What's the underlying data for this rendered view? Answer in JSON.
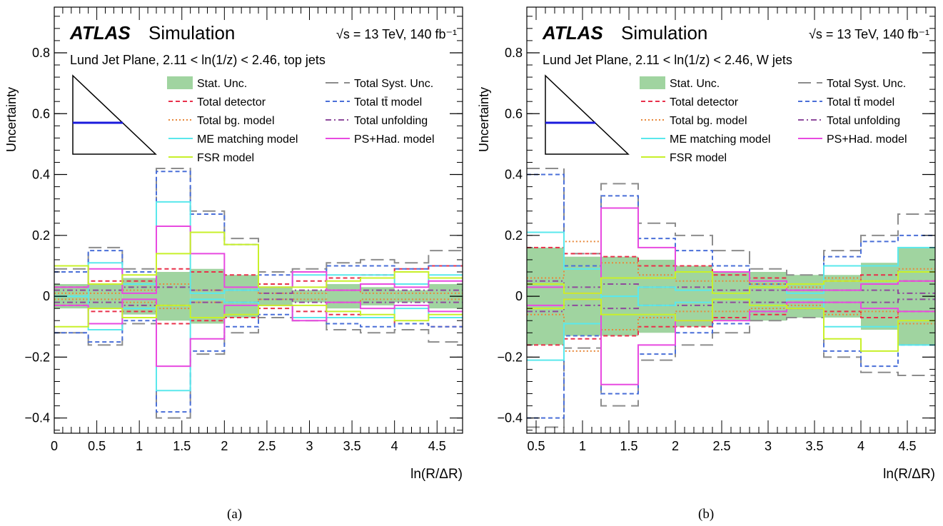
{
  "panels": [
    {
      "caption": "(a)",
      "atlas": "ATLAS",
      "simulation": "Simulation",
      "energy_label": "√s = 13 TeV, 140 fb⁻¹",
      "region_label": "Lund Jet Plane, 2.11 < ln(1/z) < 2.46, top jets",
      "ylabel": "Uncertainty",
      "xlabel": "ln(R/ΔR)"
    },
    {
      "caption": "(b)",
      "atlas": "ATLAS",
      "simulation": "Simulation",
      "energy_label": "√s = 13 TeV, 140 fb⁻¹",
      "region_label": "Lund Jet Plane, 2.11 < ln(1/z) < 2.46, W jets",
      "ylabel": "Uncertainty",
      "xlabel": "ln(R/ΔR)"
    }
  ],
  "legend": [
    {
      "key": "stat",
      "label": "Stat. Unc.",
      "color": "#a0d4a0",
      "style": "fill"
    },
    {
      "key": "syst",
      "label": "Total Syst. Unc.",
      "color": "#8c8c8c",
      "style": "longdash"
    },
    {
      "key": "det",
      "label": "Total detector",
      "color": "#e8304a",
      "style": "dash"
    },
    {
      "key": "ttbar",
      "label": "Total tt̄ model",
      "color": "#4a6fd8",
      "style": "dash"
    },
    {
      "key": "bg",
      "label": "Total bg. model",
      "color": "#e8883a",
      "style": "dot"
    },
    {
      "key": "unf",
      "label": "Total unfolding",
      "color": "#8e4a9c",
      "style": "dashdot"
    },
    {
      "key": "me",
      "label": "ME matching model",
      "color": "#5ae8ec",
      "style": "solid"
    },
    {
      "key": "ps",
      "label": "PS+Had. model",
      "color": "#e84ae0",
      "style": "solid"
    },
    {
      "key": "fsr",
      "label": "FSR model",
      "color": "#c8f02a",
      "style": "solid"
    }
  ],
  "chart_data": [
    {
      "type": "step",
      "title": "Lund Jet Plane, 2.11 < ln(1/z) < 2.46, top jets",
      "xlabel": "ln(R/ΔR)",
      "ylabel": "Uncertainty",
      "xlim": [
        0,
        4.8
      ],
      "ylim": [
        -0.45,
        0.95
      ],
      "xticks": [
        0,
        0.5,
        1,
        1.5,
        2,
        2.5,
        3,
        3.5,
        4,
        4.5
      ],
      "yticks": [
        -0.4,
        -0.2,
        0,
        0.2,
        0.4,
        0.6,
        0.8
      ],
      "edges": [
        0,
        0.4,
        0.8,
        1.2,
        1.6,
        2.0,
        2.4,
        2.8,
        3.2,
        3.6,
        4.0,
        4.4,
        4.8
      ],
      "series": [
        {
          "key": "stat",
          "name": "Stat. Unc.",
          "up": [
            0.04,
            0.04,
            0.06,
            0.08,
            0.09,
            0.07,
            0.03,
            0.02,
            0.04,
            0.03,
            0.02,
            0.04
          ],
          "down": [
            -0.04,
            -0.04,
            -0.06,
            -0.08,
            -0.09,
            -0.07,
            -0.03,
            -0.02,
            -0.04,
            -0.03,
            -0.02,
            -0.04
          ]
        },
        {
          "key": "syst",
          "name": "Total Syst. Unc.",
          "up": [
            0.09,
            0.16,
            0.09,
            0.42,
            0.28,
            0.19,
            0.08,
            0.09,
            0.11,
            0.12,
            0.11,
            0.15
          ],
          "down": [
            -0.12,
            -0.16,
            -0.09,
            -0.4,
            -0.19,
            -0.12,
            -0.07,
            -0.08,
            -0.11,
            -0.12,
            -0.11,
            -0.15
          ]
        },
        {
          "key": "det",
          "name": "Total detector",
          "up": [
            0.03,
            0.05,
            0.05,
            0.09,
            0.08,
            0.07,
            0.04,
            0.05,
            0.06,
            0.07,
            0.09,
            0.1
          ],
          "down": [
            -0.03,
            -0.05,
            -0.05,
            -0.09,
            -0.08,
            -0.07,
            -0.04,
            -0.05,
            -0.06,
            -0.07,
            -0.09,
            -0.1
          ]
        },
        {
          "key": "ttbar",
          "name": "Total tt̄ model",
          "up": [
            0.08,
            0.15,
            0.08,
            0.41,
            0.27,
            0.17,
            0.07,
            0.08,
            0.1,
            0.1,
            0.09,
            0.1
          ],
          "down": [
            -0.12,
            -0.15,
            -0.08,
            -0.38,
            -0.18,
            -0.1,
            -0.06,
            -0.07,
            -0.09,
            -0.1,
            -0.09,
            -0.1
          ]
        },
        {
          "key": "bg",
          "name": "Total bg. model",
          "up": [
            0.01,
            0.01,
            0.02,
            0.04,
            0.02,
            0.02,
            0.01,
            0.01,
            0.02,
            0.01,
            0.01,
            0.01
          ],
          "down": [
            -0.01,
            -0.01,
            -0.02,
            -0.04,
            -0.02,
            -0.02,
            -0.01,
            -0.01,
            -0.02,
            -0.01,
            -0.01,
            -0.01
          ]
        },
        {
          "key": "unf",
          "name": "Total unfolding",
          "up": [
            0.02,
            0.02,
            0.03,
            0.03,
            0.02,
            0.02,
            0.01,
            0.02,
            0.02,
            0.02,
            0.02,
            0.02
          ],
          "down": [
            -0.02,
            -0.02,
            -0.03,
            -0.03,
            -0.02,
            -0.02,
            -0.01,
            -0.02,
            -0.02,
            -0.02,
            -0.02,
            -0.02
          ]
        },
        {
          "key": "me",
          "name": "ME matching model",
          "up": [
            0.0,
            0.11,
            0.04,
            0.31,
            0.01,
            0.02,
            0.03,
            0.07,
            0.07,
            0.07,
            0.04,
            0.07
          ],
          "down": [
            0.0,
            -0.11,
            -0.04,
            -0.31,
            -0.01,
            -0.02,
            -0.03,
            -0.07,
            -0.07,
            -0.07,
            -0.04,
            -0.07
          ]
        },
        {
          "key": "ps",
          "name": "PS+Had. model",
          "up": [
            0.03,
            0.09,
            0.01,
            0.23,
            0.14,
            0.03,
            0.03,
            0.08,
            0.02,
            0.04,
            0.03,
            0.05
          ],
          "down": [
            -0.03,
            -0.09,
            -0.01,
            -0.23,
            -0.14,
            -0.03,
            -0.03,
            -0.08,
            -0.02,
            -0.04,
            -0.03,
            -0.05
          ]
        },
        {
          "key": "fsr",
          "name": "FSR model",
          "up": [
            0.1,
            0.04,
            0.07,
            0.14,
            0.21,
            0.17,
            0.03,
            0.03,
            0.05,
            0.06,
            0.08,
            0.06
          ],
          "down": [
            -0.1,
            -0.04,
            -0.07,
            -0.03,
            -0.07,
            -0.06,
            -0.03,
            -0.03,
            -0.05,
            -0.06,
            -0.08,
            -0.06
          ]
        }
      ]
    },
    {
      "type": "step",
      "title": "Lund Jet Plane, 2.11 < ln(1/z) < 2.46, W jets",
      "xlabel": "ln(R/ΔR)",
      "ylabel": "Uncertainty",
      "xlim": [
        0.4,
        4.8
      ],
      "ylim": [
        -0.45,
        0.95
      ],
      "xticks": [
        0.5,
        1,
        1.5,
        2,
        2.5,
        3,
        3.5,
        4,
        4.5
      ],
      "yticks": [
        -0.4,
        -0.2,
        0,
        0.2,
        0.4,
        0.6,
        0.8
      ],
      "edges": [
        0.4,
        0.8,
        1.2,
        1.6,
        2.0,
        2.4,
        2.8,
        3.2,
        3.6,
        4.0,
        4.4,
        4.8
      ],
      "series": [
        {
          "key": "stat",
          "name": "Stat. Unc.",
          "up": [
            0.16,
            0.13,
            0.13,
            0.12,
            0.1,
            0.08,
            0.08,
            0.07,
            0.07,
            0.11,
            0.16
          ],
          "down": [
            -0.16,
            -0.13,
            -0.13,
            -0.12,
            -0.1,
            -0.08,
            -0.08,
            -0.07,
            -0.07,
            -0.11,
            -0.16
          ]
        },
        {
          "key": "syst",
          "name": "Total Syst. Unc.",
          "up": [
            0.42,
            0.14,
            0.37,
            0.24,
            0.2,
            0.15,
            0.09,
            0.07,
            0.15,
            0.2,
            0.27
          ],
          "down": [
            -0.43,
            -0.17,
            -0.36,
            -0.21,
            -0.16,
            -0.12,
            -0.08,
            -0.07,
            -0.2,
            -0.25,
            -0.26
          ]
        },
        {
          "key": "det",
          "name": "Total detector",
          "up": [
            0.16,
            0.14,
            0.13,
            0.1,
            0.1,
            0.07,
            0.06,
            0.04,
            0.05,
            0.07,
            0.05
          ],
          "down": [
            -0.16,
            -0.14,
            -0.13,
            -0.1,
            -0.1,
            -0.07,
            -0.06,
            -0.04,
            -0.05,
            -0.07,
            -0.05
          ]
        },
        {
          "key": "ttbar",
          "name": "Total tt̄ model",
          "up": [
            0.4,
            0.1,
            0.33,
            0.19,
            0.15,
            0.1,
            0.04,
            0.04,
            0.13,
            0.18,
            0.2
          ],
          "down": [
            -0.4,
            -0.13,
            -0.32,
            -0.19,
            -0.12,
            -0.09,
            -0.05,
            -0.04,
            -0.18,
            -0.23,
            -0.16
          ]
        },
        {
          "key": "bg",
          "name": "Total bg. model",
          "up": [
            0.06,
            0.18,
            0.11,
            0.07,
            0.05,
            0.05,
            0.04,
            0.03,
            0.06,
            0.05,
            0.09
          ],
          "down": [
            -0.06,
            -0.18,
            -0.11,
            -0.07,
            -0.05,
            -0.05,
            -0.04,
            -0.03,
            -0.06,
            -0.05,
            -0.09
          ]
        },
        {
          "key": "unf",
          "name": "Total unfolding",
          "up": [
            0.05,
            0.03,
            0.04,
            0.03,
            0.03,
            0.02,
            0.02,
            0.02,
            0.02,
            0.02,
            0.01
          ],
          "down": [
            -0.05,
            -0.03,
            -0.04,
            -0.03,
            -0.03,
            -0.02,
            -0.02,
            -0.02,
            -0.02,
            -0.02,
            -0.01
          ]
        },
        {
          "key": "me",
          "name": "ME matching model",
          "up": [
            0.21,
            0.09,
            0.0,
            0.03,
            0.02,
            0.01,
            0.03,
            0.01,
            0.1,
            0.1,
            0.16
          ],
          "down": [
            -0.21,
            -0.09,
            0.0,
            -0.03,
            -0.02,
            -0.01,
            -0.03,
            -0.01,
            -0.1,
            -0.1,
            -0.16
          ]
        },
        {
          "key": "ps",
          "name": "PS+Had. model",
          "up": [
            0.03,
            0.01,
            0.29,
            0.16,
            0.08,
            0.08,
            0.05,
            0.02,
            0.02,
            0.04,
            0.05
          ],
          "down": [
            -0.03,
            -0.01,
            -0.29,
            -0.16,
            -0.08,
            -0.08,
            -0.05,
            -0.02,
            -0.02,
            -0.04,
            -0.05
          ]
        },
        {
          "key": "fsr",
          "name": "FSR model",
          "up": [
            0.04,
            0.01,
            0.06,
            0.06,
            0.08,
            0.01,
            0.03,
            0.04,
            0.05,
            0.05,
            0.08
          ],
          "down": [
            -0.04,
            -0.01,
            -0.06,
            -0.06,
            -0.08,
            -0.01,
            -0.03,
            -0.04,
            -0.14,
            -0.18,
            -0.08
          ]
        }
      ]
    }
  ]
}
